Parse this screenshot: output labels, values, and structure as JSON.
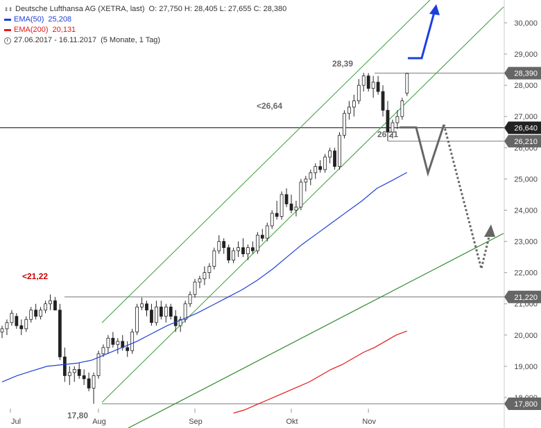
{
  "legend": {
    "symbol": "Deutsche Lufthansa AG (XETRA, last)",
    "ohlc": "O: 27,750  H: 28,405  L: 27,655  C: 28,380",
    "ema50_label": "EMA(50)",
    "ema50_value": "25,208",
    "ema200_label": "EMA(200)",
    "ema200_value": "20,131",
    "period": "27.06.2017 - 16.11.2017",
    "period_detail": "(5 Monate, 1 Tag)"
  },
  "colors": {
    "candle_up": "#ffffff",
    "candle_down": "#222222",
    "ema50": "#1f3fd4",
    "ema200": "#e01818",
    "channel": "#3a9a3a",
    "support": "#2d8a2d",
    "level_line": "#555555",
    "price_box": "#666666",
    "blue_arrow": "#1a3fe0",
    "scenario": "#666666",
    "label_red": "#cc0000"
  },
  "chart_data": {
    "type": "candlestick",
    "ylim": [
      17.5,
      30.6
    ],
    "yticks": [
      "18,000",
      "19,000",
      "20,000",
      "21,000",
      "22,000",
      "23,000",
      "24,000",
      "25,000",
      "26,000",
      "27,000",
      "28,000",
      "29,000",
      "30,000"
    ],
    "yticks_values": [
      18,
      19,
      20,
      21,
      22,
      23,
      24,
      25,
      26,
      27,
      28,
      29,
      30
    ],
    "x_months": [
      "Jul",
      "Aug",
      "Sep",
      "Okt",
      "Nov"
    ],
    "candles": [
      [
        20.1,
        20.3,
        19.9,
        20.2
      ],
      [
        20.2,
        20.5,
        20.0,
        20.4
      ],
      [
        20.4,
        20.8,
        20.3,
        20.7
      ],
      [
        20.6,
        20.7,
        20.2,
        20.3
      ],
      [
        20.3,
        20.5,
        20.0,
        20.2
      ],
      [
        20.2,
        20.6,
        20.1,
        20.5
      ],
      [
        20.5,
        20.9,
        20.4,
        20.8
      ],
      [
        20.8,
        21.0,
        20.5,
        20.6
      ],
      [
        20.6,
        20.9,
        20.5,
        20.8
      ],
      [
        20.8,
        21.1,
        20.7,
        21.0
      ],
      [
        21.0,
        21.3,
        20.8,
        21.1
      ],
      [
        21.1,
        21.22,
        20.9,
        20.8
      ],
      [
        20.8,
        21.0,
        19.2,
        19.3
      ],
      [
        19.3,
        19.6,
        18.5,
        18.7
      ],
      [
        18.7,
        19.0,
        18.4,
        18.8
      ],
      [
        18.8,
        19.0,
        18.5,
        18.9
      ],
      [
        18.9,
        19.1,
        18.6,
        18.7
      ],
      [
        18.7,
        18.9,
        18.4,
        18.6
      ],
      [
        18.6,
        18.8,
        18.2,
        18.3
      ],
      [
        18.3,
        18.8,
        17.8,
        18.7
      ],
      [
        18.7,
        19.5,
        18.6,
        19.4
      ],
      [
        19.4,
        19.7,
        19.3,
        19.6
      ],
      [
        19.6,
        20.0,
        19.4,
        19.9
      ],
      [
        19.9,
        20.1,
        19.6,
        19.7
      ],
      [
        19.7,
        19.9,
        19.4,
        19.8
      ],
      [
        19.8,
        20.0,
        19.5,
        19.6
      ],
      [
        19.6,
        19.8,
        19.3,
        19.5
      ],
      [
        19.5,
        20.2,
        19.4,
        20.1
      ],
      [
        20.1,
        21.0,
        20.0,
        20.9
      ],
      [
        20.9,
        21.2,
        20.8,
        21.0
      ],
      [
        21.0,
        21.1,
        20.6,
        20.8
      ],
      [
        20.8,
        21.0,
        20.3,
        20.4
      ],
      [
        20.4,
        21.1,
        20.3,
        20.9
      ],
      [
        20.9,
        21.1,
        20.5,
        20.6
      ],
      [
        20.6,
        21.0,
        20.4,
        20.9
      ],
      [
        20.9,
        21.0,
        20.5,
        20.6
      ],
      [
        20.6,
        20.8,
        20.1,
        20.3
      ],
      [
        20.3,
        20.6,
        20.1,
        20.5
      ],
      [
        20.5,
        21.1,
        20.4,
        21.0
      ],
      [
        21.0,
        21.4,
        20.9,
        21.3
      ],
      [
        21.3,
        21.8,
        21.2,
        21.7
      ],
      [
        21.7,
        21.9,
        21.5,
        21.8
      ],
      [
        21.8,
        22.2,
        21.6,
        22.0
      ],
      [
        22.0,
        22.3,
        21.8,
        22.2
      ],
      [
        22.2,
        22.8,
        22.1,
        22.7
      ],
      [
        22.7,
        23.2,
        22.6,
        23.0
      ],
      [
        23.0,
        23.1,
        22.6,
        22.8
      ],
      [
        22.8,
        22.9,
        22.3,
        22.4
      ],
      [
        22.4,
        22.8,
        22.3,
        22.7
      ],
      [
        22.7,
        23.0,
        22.5,
        22.8
      ],
      [
        22.8,
        23.1,
        22.5,
        22.6
      ],
      [
        22.6,
        22.9,
        22.4,
        22.8
      ],
      [
        22.8,
        23.0,
        22.6,
        22.7
      ],
      [
        22.7,
        23.3,
        22.6,
        23.2
      ],
      [
        23.2,
        23.4,
        23.0,
        23.1
      ],
      [
        23.1,
        23.6,
        23.0,
        23.5
      ],
      [
        23.5,
        24.0,
        23.4,
        23.9
      ],
      [
        23.9,
        24.3,
        23.7,
        23.8
      ],
      [
        23.8,
        24.6,
        23.7,
        24.5
      ],
      [
        24.5,
        24.7,
        24.1,
        24.2
      ],
      [
        24.2,
        24.5,
        23.9,
        24.0
      ],
      [
        24.0,
        24.3,
        23.8,
        24.1
      ],
      [
        24.1,
        25.0,
        24.0,
        24.9
      ],
      [
        24.9,
        25.1,
        24.6,
        25.0
      ],
      [
        25.0,
        25.3,
        24.8,
        25.2
      ],
      [
        25.2,
        25.5,
        25.0,
        25.4
      ],
      [
        25.4,
        25.6,
        25.2,
        25.3
      ],
      [
        25.3,
        25.8,
        25.2,
        25.7
      ],
      [
        25.7,
        26.0,
        25.5,
        25.9
      ],
      [
        25.9,
        26.0,
        25.3,
        25.4
      ],
      [
        25.4,
        26.5,
        25.3,
        26.4
      ],
      [
        26.4,
        27.2,
        26.3,
        27.1
      ],
      [
        27.1,
        27.5,
        26.9,
        27.3
      ],
      [
        27.3,
        27.7,
        27.0,
        27.5
      ],
      [
        27.5,
        28.2,
        27.4,
        28.0
      ],
      [
        28.0,
        28.4,
        27.8,
        28.3
      ],
      [
        28.3,
        28.39,
        27.8,
        27.9
      ],
      [
        27.9,
        28.3,
        27.6,
        28.1
      ],
      [
        28.1,
        28.3,
        27.7,
        27.8
      ],
      [
        27.8,
        28.0,
        27.0,
        27.2
      ],
      [
        27.2,
        27.5,
        26.21,
        26.5
      ],
      [
        26.5,
        26.9,
        26.3,
        26.8
      ],
      [
        26.8,
        27.2,
        26.6,
        27.0
      ],
      [
        27.0,
        27.6,
        26.9,
        27.5
      ],
      [
        27.75,
        28.405,
        27.655,
        28.38
      ]
    ],
    "ema50": [
      18.5,
      18.7,
      18.85,
      19.0,
      19.05,
      19.1,
      19.2,
      19.4,
      19.6,
      19.8,
      20.05,
      20.3,
      20.5,
      20.7,
      20.95,
      21.2,
      21.45,
      21.75,
      22.1,
      22.5,
      22.9,
      23.25,
      23.6,
      23.95,
      24.3,
      24.7,
      24.95,
      25.208
    ],
    "ema200": [
      17.5,
      17.6,
      17.75,
      17.9,
      18.05,
      18.2,
      18.35,
      18.5,
      18.7,
      18.9,
      19.05,
      19.25,
      19.45,
      19.6,
      19.8,
      20.0,
      20.131
    ],
    "levels": [
      {
        "label": "26,640",
        "value": 26.64,
        "annotation": "<26,64"
      },
      {
        "label": "28,390",
        "value": 28.39,
        "annotation": "28,39"
      },
      {
        "label": "26,210",
        "value": 26.21,
        "annotation": "26,21"
      },
      {
        "label": "21,220",
        "value": 21.22,
        "annotation": "<21,22"
      },
      {
        "label": "17,800",
        "value": 17.8,
        "annotation": "17,80"
      }
    ],
    "channel_upper": [
      [
        17.8,
        19.9
      ],
      [
        35.0,
        30.6
      ]
    ],
    "channel_lower": [
      [
        17.8,
        17.8
      ],
      [
        35.0,
        30.4
      ]
    ],
    "support_line": [
      [
        17.8,
        17.2
      ],
      [
        35.0,
        22.6
      ]
    ]
  }
}
